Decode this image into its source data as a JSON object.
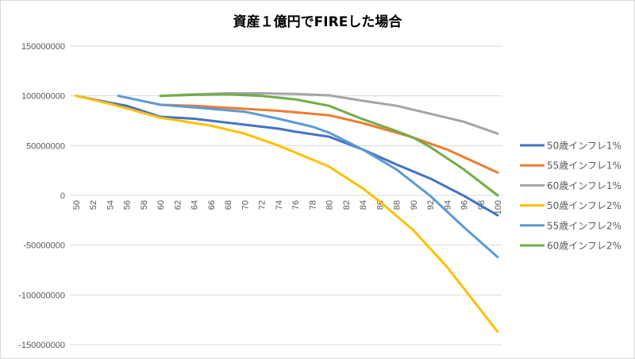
{
  "chart_data": {
    "type": "line",
    "title": "資産１億円でFIREした場合",
    "xlabel": "",
    "ylabel": "",
    "xlim": [
      50,
      100
    ],
    "ylim": [
      -150000000,
      150000000
    ],
    "x_ticks": [
      "50",
      "52",
      "54",
      "56",
      "58",
      "60",
      "62",
      "64",
      "66",
      "68",
      "70",
      "72",
      "74",
      "76",
      "78",
      "80",
      "82",
      "84",
      "86",
      "88",
      "90",
      "92",
      "94",
      "96",
      "98",
      "100"
    ],
    "y_ticks": [
      "150000000",
      "100000000",
      "50000000",
      "0",
      "-50000000",
      "-100000000",
      "-150000000"
    ],
    "grid": true,
    "legend_position": "right",
    "series": [
      {
        "name": "50歳インフレ1%",
        "color": "#4472C4",
        "x": [
          50,
          54,
          56,
          60,
          64,
          70,
          74,
          76,
          80,
          84,
          88,
          92,
          96,
          100
        ],
        "y": [
          100000000,
          93000000,
          90000000,
          79000000,
          77000000,
          71000000,
          67000000,
          64000000,
          59000000,
          46000000,
          31000000,
          17000000,
          -500000,
          -20000000
        ]
      },
      {
        "name": "55歳インフレ1%",
        "color": "#ED7D31",
        "x": [
          60,
          64,
          70,
          74,
          78,
          80,
          84,
          88,
          90,
          94,
          100
        ],
        "y": [
          91000000,
          90000000,
          87000000,
          85000000,
          82000000,
          80500000,
          72600000,
          63000000,
          58000000,
          46000000,
          23000000
        ]
      },
      {
        "name": "60歳インフレ1%",
        "color": "#A5A5A5",
        "x": [
          60,
          64,
          68,
          72,
          76,
          80,
          84,
          88,
          92,
          96,
          100
        ],
        "y": [
          100000000,
          101500000,
          102500000,
          102500000,
          102000000,
          100500000,
          95000000,
          90000000,
          82000000,
          74000000,
          62000000
        ]
      },
      {
        "name": "50歳インフレ2%",
        "color": "#FFC000",
        "x": [
          50,
          54,
          60,
          66,
          70,
          74,
          78,
          80,
          84,
          86,
          90,
          94,
          100
        ],
        "y": [
          100000000,
          92000000,
          78000000,
          70000000,
          62000000,
          50000000,
          36000000,
          29000000,
          7000000,
          -6000000,
          -35000000,
          -72000000,
          -137000000
        ]
      },
      {
        "name": "55歳インフレ2%",
        "color": "#5B9BD5",
        "x": [
          55,
          60,
          66,
          70,
          74,
          78,
          80,
          84,
          88,
          92,
          96,
          100
        ],
        "y": [
          100000000,
          91000000,
          87000000,
          84000000,
          77000000,
          69000000,
          63000000,
          46000000,
          26000000,
          -500000,
          -32000000,
          -62000000
        ]
      },
      {
        "name": "60歳インフレ2%",
        "color": "#70AD47",
        "x": [
          60,
          64,
          68,
          72,
          76,
          80,
          84,
          88,
          90,
          92,
          96,
          100
        ],
        "y": [
          100000000,
          101000000,
          101500000,
          100000000,
          96500000,
          90000000,
          76500000,
          64600000,
          58000000,
          48600000,
          26000000,
          0
        ]
      }
    ]
  }
}
